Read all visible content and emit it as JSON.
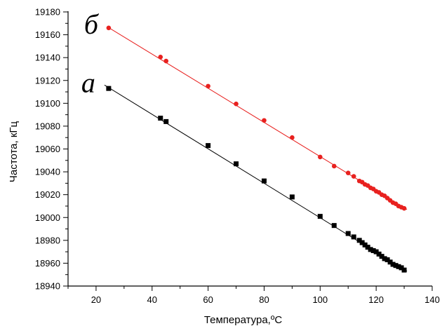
{
  "chart_data": {
    "type": "scatter",
    "title": "",
    "xlabel": "Температура,ºC",
    "ylabel": "Частота, кГц",
    "xlim": [
      10,
      140
    ],
    "ylim": [
      18940,
      19180
    ],
    "xticks": [
      20,
      40,
      60,
      80,
      100,
      120,
      140
    ],
    "yticks": [
      18940,
      18960,
      18980,
      19000,
      19020,
      19040,
      19060,
      19080,
      19100,
      19120,
      19140,
      19160,
      19180
    ],
    "grid": false,
    "legend": "none",
    "series": [
      {
        "name": "б",
        "color": "#e8211f",
        "marker": "circle",
        "fit_line": [
          [
            24,
            19167
          ],
          [
            131,
            19007
          ]
        ],
        "x": [
          24.5,
          43,
          45,
          60,
          70,
          80,
          90,
          100,
          105,
          110,
          112,
          114,
          115,
          116,
          117,
          118,
          119,
          120,
          121,
          122,
          123,
          124,
          125,
          126,
          127,
          128,
          129,
          130
        ],
        "y": [
          19166,
          19140.5,
          19137,
          19115,
          19099.5,
          19085,
          19070,
          19053,
          19045,
          19039,
          19036,
          19032,
          19031,
          19029,
          19028,
          19026,
          19025,
          19023,
          19022,
          19020,
          19019,
          19017,
          19015,
          19013,
          19012,
          19010,
          19009,
          19008
        ]
      },
      {
        "name": "а",
        "color": "#000000",
        "marker": "square",
        "fit_line": [
          [
            23,
            19116
          ],
          [
            131,
            18953
          ]
        ],
        "x": [
          24.5,
          43,
          45,
          60,
          70,
          80,
          90,
          100,
          105,
          110,
          112,
          114,
          115,
          116,
          117,
          118,
          119,
          120,
          121,
          122,
          123,
          124,
          125,
          126,
          127,
          128,
          129,
          130
        ],
        "y": [
          19113,
          19087,
          19084,
          19063,
          19047,
          19032,
          19018,
          19001,
          18993,
          18986,
          18983,
          18980,
          18978,
          18976,
          18974,
          18972,
          18971,
          18970,
          18968,
          18966,
          18964,
          18963,
          18961,
          18959,
          18958,
          18957,
          18956,
          18954
        ]
      }
    ]
  }
}
